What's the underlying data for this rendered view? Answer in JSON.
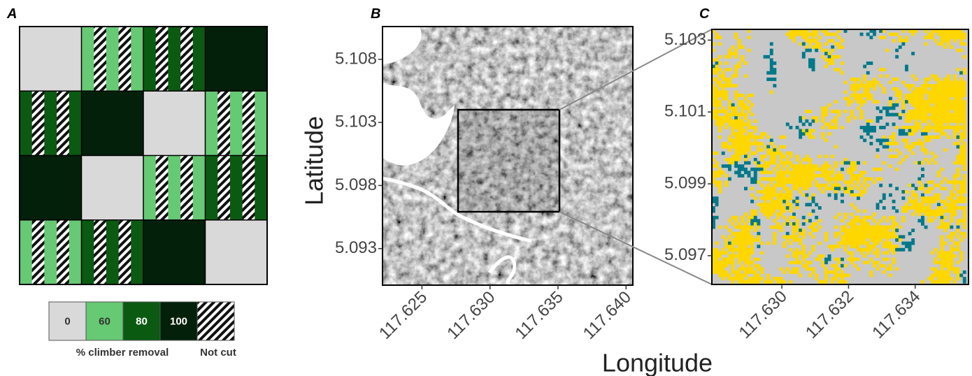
{
  "panels": {
    "a": {
      "label": "A",
      "colors": {
        "0": "#d9d9d9",
        "60": "#66c973",
        "80": "#0b5a12",
        "100": "#03200a"
      },
      "grid": [
        [
          0,
          60,
          80,
          100
        ],
        [
          80,
          100,
          0,
          60
        ],
        [
          100,
          0,
          60,
          80
        ],
        [
          60,
          80,
          100,
          0
        ]
      ],
      "hatched": [
        [
          false,
          true,
          true,
          false
        ],
        [
          true,
          false,
          false,
          true
        ],
        [
          false,
          false,
          true,
          true
        ],
        [
          true,
          true,
          false,
          false
        ]
      ],
      "legend": {
        "items": [
          0,
          60,
          80,
          100
        ],
        "caption": "% climber removal",
        "not_cut": "Not cut"
      }
    },
    "b": {
      "label": "B",
      "xlim": [
        117.6221,
        117.6405
      ],
      "ylim": [
        5.0901,
        5.1106
      ],
      "xticks": [
        117.625,
        {
          "value": 117.63,
          "label": "117.630"
        },
        117.635,
        {
          "value": 117.64,
          "label": "117.640"
        }
      ],
      "yticks": [
        5.108,
        5.103,
        5.098,
        5.093
      ]
    },
    "c": {
      "label": "C",
      "xlim": [
        117.6279,
        117.6356
      ],
      "ylim": [
        5.0962,
        5.1033
      ],
      "xticks": [
        {
          "value": 117.63,
          "label": "117.630"
        },
        117.632,
        117.634
      ],
      "yticks": [
        5.103,
        5.101,
        5.099,
        5.097
      ]
    },
    "x_title": "Longitude",
    "y_title": "Latitude"
  }
}
